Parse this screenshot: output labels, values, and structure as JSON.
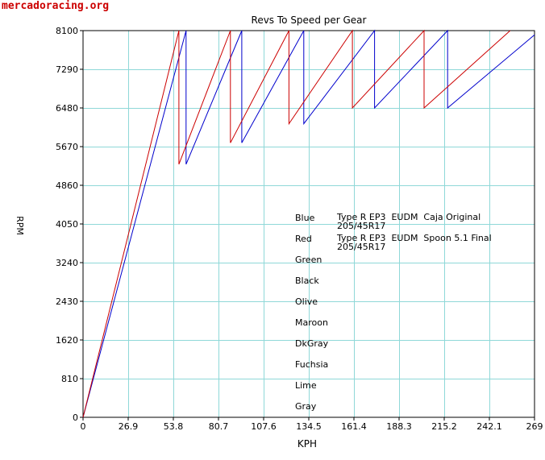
{
  "watermark": "mercadoracing.org",
  "chart_data": {
    "type": "line",
    "title": "Revs To Speed per Gear",
    "xlabel": "KPH",
    "ylabel": "RPM",
    "xlim": [
      0,
      269
    ],
    "ylim": [
      0,
      8100
    ],
    "xticks": [
      0,
      26.9,
      53.8,
      80.7,
      107.6,
      134.5,
      161.4,
      188.3,
      215.2,
      242.1,
      269
    ],
    "yticks": [
      0,
      810,
      1620,
      2430,
      3240,
      4050,
      4860,
      5670,
      6480,
      7290,
      8100
    ],
    "grid": true,
    "series": [
      {
        "name": "Blue",
        "description_line1": "Type R EP3  EUDM  Caja Original",
        "description_line2": "205/45R17",
        "color": "#0000cc",
        "gears": [
          {
            "x": [
              0,
              61.4
            ],
            "y": [
              0,
              8100
            ]
          },
          {
            "x": [
              61.4,
              94.6
            ],
            "y": [
              5300,
              8100
            ]
          },
          {
            "x": [
              94.6,
              131.5
            ],
            "y": [
              5750,
              8100
            ]
          },
          {
            "x": [
              131.5,
              173.7
            ],
            "y": [
              6150,
              8100
            ]
          },
          {
            "x": [
              173.7,
              217.2
            ],
            "y": [
              6480,
              8100
            ]
          },
          {
            "x": [
              217.2,
              272
            ],
            "y": [
              6480,
              8100
            ]
          }
        ]
      },
      {
        "name": "Red",
        "description_line1": "Type R EP3  EUDM  Spoon 5.1 Final",
        "description_line2": "205/45R17",
        "color": "#cc0000",
        "gears": [
          {
            "x": [
              0,
              57.1
            ],
            "y": [
              0,
              8100
            ]
          },
          {
            "x": [
              57.1,
              87.8
            ],
            "y": [
              5300,
              8100
            ]
          },
          {
            "x": [
              87.8,
              122.7
            ],
            "y": [
              5750,
              8100
            ]
          },
          {
            "x": [
              122.7,
              160.5
            ],
            "y": [
              6150,
              8100
            ]
          },
          {
            "x": [
              160.5,
              203.2
            ],
            "y": [
              6480,
              8100
            ]
          },
          {
            "x": [
              203.2,
              254.5
            ],
            "y": [
              6480,
              8100
            ]
          }
        ]
      }
    ],
    "legend": [
      "Blue",
      "Red",
      "Green",
      "Black",
      "Olive",
      "Maroon",
      "DkGray",
      "Fuchsia",
      "Lime",
      "Gray"
    ],
    "legend_placement": "center-right"
  }
}
